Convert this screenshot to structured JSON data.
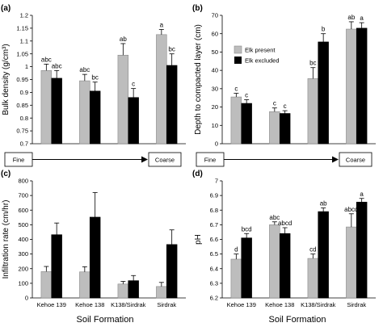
{
  "colors": {
    "present": "#bdbdbd",
    "excluded": "#000000",
    "axis": "#000000"
  },
  "legend": {
    "present": "Elk present",
    "excluded": "Elk excluded"
  },
  "gradient": {
    "left": "Fine",
    "right": "Coarse"
  },
  "xlabel": "Soil Formation",
  "chart_data": [
    {
      "panel": "(a)",
      "type": "bar",
      "ylabel": "Bulk density (g/cm³)",
      "ylim": [
        0.7,
        1.2
      ],
      "yticks": [
        "0.7",
        "0.75",
        "0.8",
        "0.85",
        "0.9",
        "0.95",
        "1",
        "1.05",
        "1.1",
        "1.15",
        "1.2"
      ],
      "categories": [
        "Kehoe 139",
        "Kehoe 138",
        "K138/Sirdrak",
        "Sirdrak"
      ],
      "show_categories": false,
      "series": [
        {
          "name": "Elk present",
          "values": [
            0.985,
            0.945,
            1.045,
            1.125
          ],
          "errors": [
            0.025,
            0.025,
            0.045,
            0.02
          ],
          "letters": [
            "abc",
            "abc",
            "ab",
            "a"
          ]
        },
        {
          "name": "Elk excluded",
          "values": [
            0.955,
            0.905,
            0.88,
            1.005
          ],
          "errors": [
            0.03,
            0.035,
            0.035,
            0.045
          ],
          "letters": [
            "abc",
            "bc",
            "c",
            "bc"
          ]
        }
      ]
    },
    {
      "panel": "(b)",
      "type": "bar",
      "ylabel": "Depth to compacted layer (cm)",
      "ylim": [
        0,
        70
      ],
      "yticks": [
        "0",
        "10",
        "20",
        "30",
        "40",
        "50",
        "60",
        "70"
      ],
      "categories": [
        "Kehoe 139",
        "Kehoe 138",
        "K138/Sirdrak",
        "Sirdrak"
      ],
      "show_categories": false,
      "legend": true,
      "series": [
        {
          "name": "Elk present",
          "values": [
            25.5,
            17.5,
            35.5,
            62.5
          ],
          "errors": [
            2,
            2,
            6,
            4
          ],
          "letters": [
            "c",
            "c",
            "bc",
            "ab"
          ]
        },
        {
          "name": "Elk excluded",
          "values": [
            22,
            16.5,
            55.5,
            63
          ],
          "errors": [
            2,
            1.5,
            4.5,
            3
          ],
          "letters": [
            "c",
            "c",
            "b",
            "a"
          ]
        }
      ]
    },
    {
      "panel": "(c)",
      "type": "bar",
      "ylabel": "Infiltration rate (cm/hr)",
      "ylim": [
        0,
        800
      ],
      "yticks": [
        "0",
        "100",
        "200",
        "300",
        "400",
        "500",
        "600",
        "700",
        "800"
      ],
      "categories": [
        "Kehoe 139",
        "Kehoe 138",
        "K138/Sirdrak",
        "Sirdrak"
      ],
      "show_categories": true,
      "series": [
        {
          "name": "Elk present",
          "values": [
            180,
            178,
            95,
            78
          ],
          "errors": [
            35,
            35,
            18,
            28
          ],
          "letters": [
            "",
            "",
            "",
            ""
          ]
        },
        {
          "name": "Elk excluded",
          "values": [
            432,
            552,
            118,
            365
          ],
          "errors": [
            80,
            168,
            35,
            100
          ],
          "letters": [
            "",
            "",
            "",
            ""
          ]
        }
      ]
    },
    {
      "panel": "(d)",
      "type": "bar",
      "ylabel": "pH",
      "ylim": [
        6.2,
        7.0
      ],
      "yticks": [
        "6.2",
        "6.3",
        "6.4",
        "6.5",
        "6.6",
        "6.7",
        "6.8",
        "6.9",
        "7"
      ],
      "categories": [
        "Kehoe 139",
        "Kehoe 138",
        "K138/Sirdrak",
        "Sirdrak"
      ],
      "show_categories": true,
      "series": [
        {
          "name": "Elk present",
          "values": [
            6.465,
            6.7,
            6.47,
            6.685
          ],
          "errors": [
            0.035,
            0.02,
            0.03,
            0.09
          ],
          "letters": [
            "d",
            "abc",
            "cd",
            "abcd"
          ]
        },
        {
          "name": "Elk excluded",
          "values": [
            6.61,
            6.64,
            6.79,
            6.855
          ],
          "errors": [
            0.03,
            0.04,
            0.025,
            0.025
          ],
          "letters": [
            "bcd",
            "abcd",
            "ab",
            "a"
          ]
        }
      ]
    }
  ]
}
